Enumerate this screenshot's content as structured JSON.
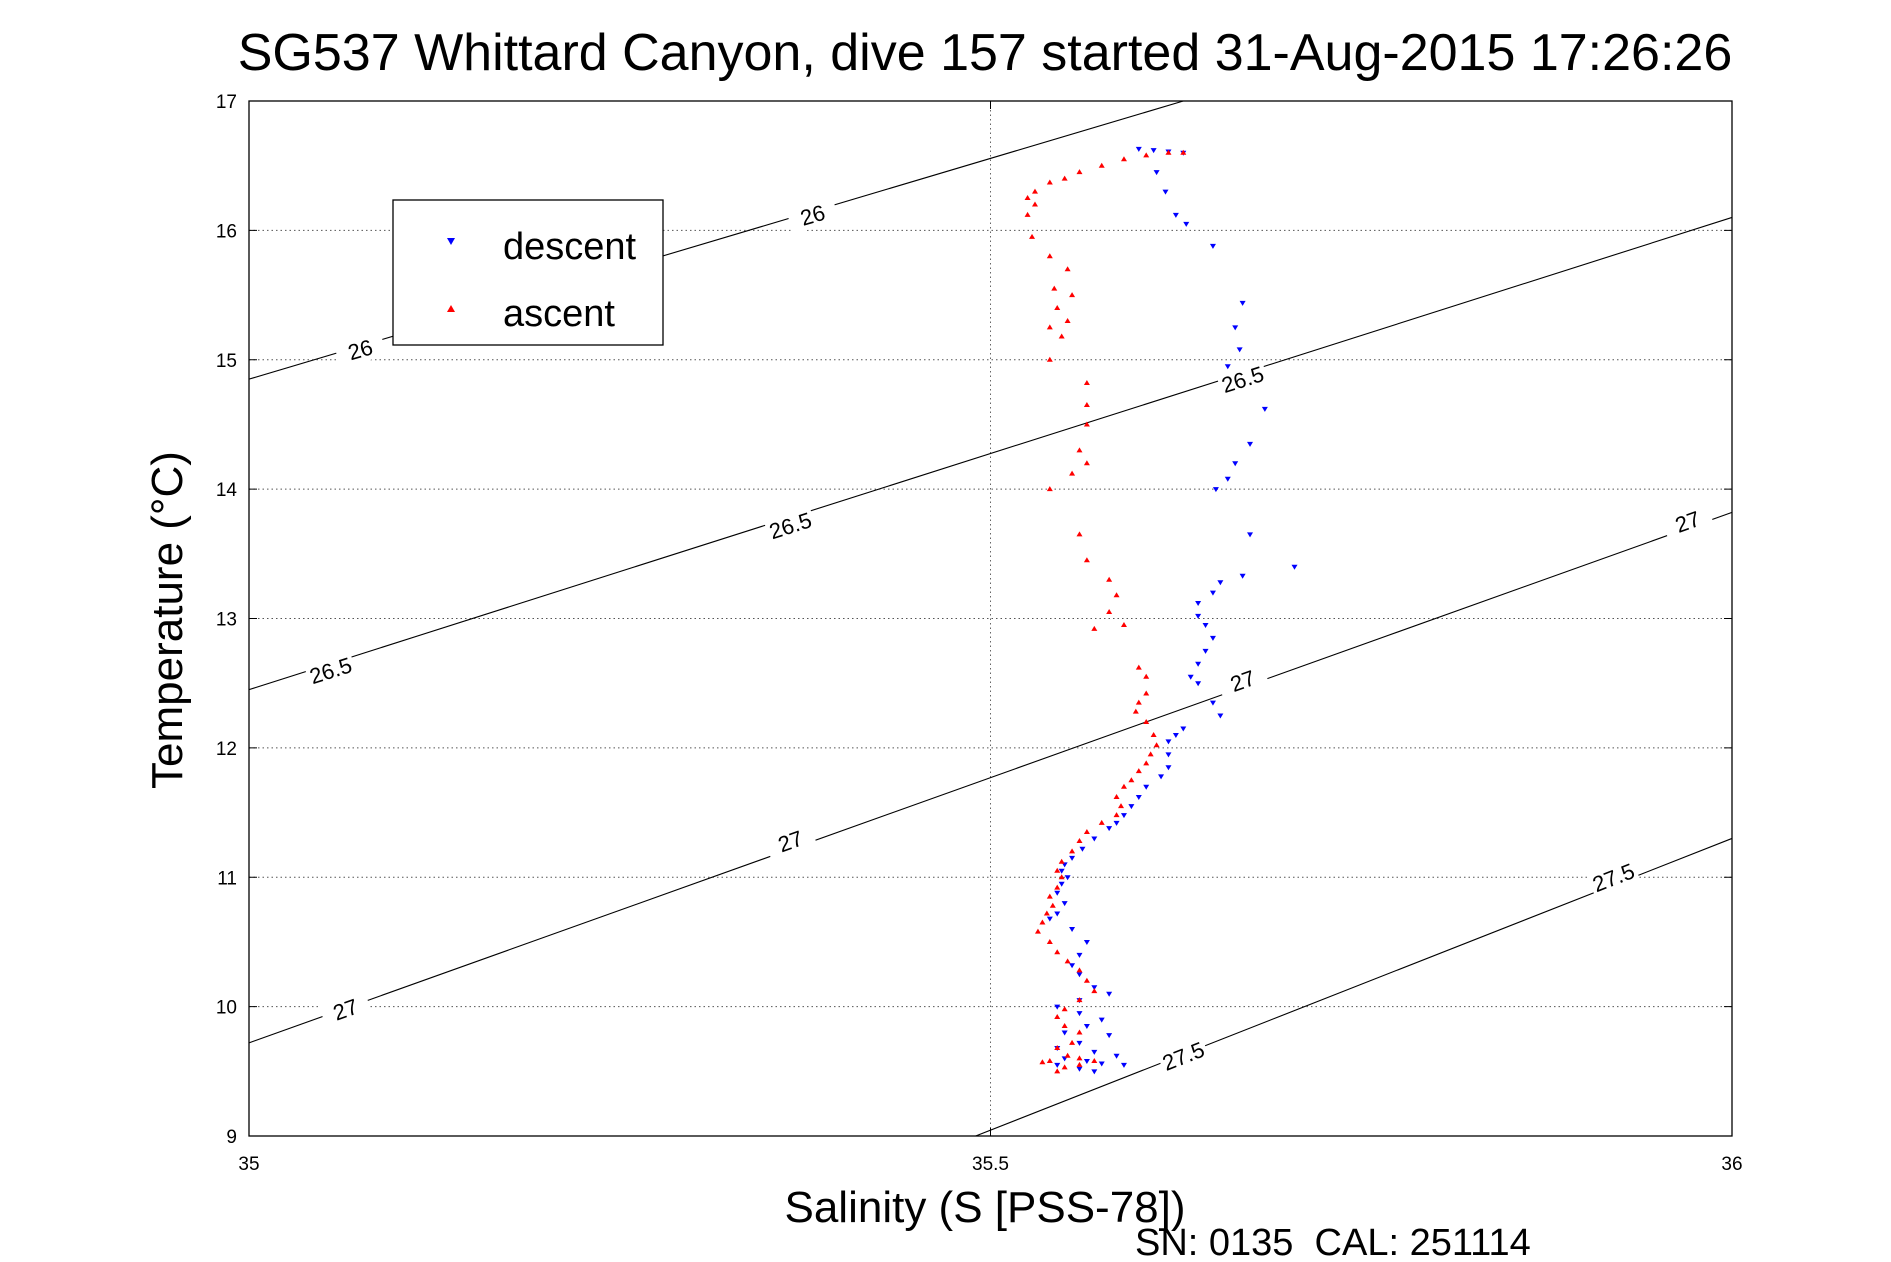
{
  "chart_data": {
    "type": "scatter",
    "title": "SG537 Whittard Canyon, dive 157 started 31-Aug-2015 17:26:26",
    "xlabel": "Salinity (S [PSS-78])",
    "ylabel": "Temperature (°C)",
    "xlim": [
      35,
      36
    ],
    "ylim": [
      9,
      17
    ],
    "xticks": [
      "35",
      "35.5",
      "36"
    ],
    "yticks": [
      "9",
      "10",
      "11",
      "12",
      "13",
      "14",
      "15",
      "16",
      "17"
    ],
    "grid": true,
    "legend_position": "upper-left",
    "footer": "SN: 0135  CAL: 251114",
    "series": [
      {
        "name": "descent",
        "marker": "triangle-down",
        "color": "#0000ff",
        "points": [
          [
            35.6,
            16.63
          ],
          [
            35.61,
            16.62
          ],
          [
            35.62,
            16.61
          ],
          [
            35.63,
            16.6
          ],
          [
            35.612,
            16.45
          ],
          [
            35.618,
            16.3
          ],
          [
            35.625,
            16.12
          ],
          [
            35.632,
            16.05
          ],
          [
            35.65,
            15.88
          ],
          [
            35.67,
            15.44
          ],
          [
            35.665,
            15.25
          ],
          [
            35.668,
            15.08
          ],
          [
            35.66,
            14.95
          ],
          [
            35.685,
            14.62
          ],
          [
            35.675,
            14.35
          ],
          [
            35.665,
            14.2
          ],
          [
            35.66,
            14.08
          ],
          [
            35.652,
            14.0
          ],
          [
            35.675,
            13.65
          ],
          [
            35.705,
            13.4
          ],
          [
            35.67,
            13.33
          ],
          [
            35.655,
            13.28
          ],
          [
            35.65,
            13.2
          ],
          [
            35.64,
            13.12
          ],
          [
            35.64,
            13.02
          ],
          [
            35.645,
            12.95
          ],
          [
            35.65,
            12.85
          ],
          [
            35.645,
            12.75
          ],
          [
            35.64,
            12.65
          ],
          [
            35.635,
            12.55
          ],
          [
            35.64,
            12.5
          ],
          [
            35.65,
            12.35
          ],
          [
            35.655,
            12.25
          ],
          [
            35.63,
            12.15
          ],
          [
            35.625,
            12.1
          ],
          [
            35.62,
            12.05
          ],
          [
            35.62,
            11.95
          ],
          [
            35.62,
            11.85
          ],
          [
            35.615,
            11.78
          ],
          [
            35.605,
            11.7
          ],
          [
            35.6,
            11.62
          ],
          [
            35.595,
            11.55
          ],
          [
            35.59,
            11.48
          ],
          [
            35.585,
            11.42
          ],
          [
            35.58,
            11.38
          ],
          [
            35.57,
            11.3
          ],
          [
            35.562,
            11.22
          ],
          [
            35.555,
            11.15
          ],
          [
            35.55,
            11.1
          ],
          [
            35.548,
            11.05
          ],
          [
            35.552,
            11.0
          ],
          [
            35.548,
            10.95
          ],
          [
            35.545,
            10.88
          ],
          [
            35.55,
            10.8
          ],
          [
            35.545,
            10.72
          ],
          [
            35.54,
            10.68
          ],
          [
            35.555,
            10.6
          ],
          [
            35.565,
            10.5
          ],
          [
            35.56,
            10.4
          ],
          [
            35.555,
            10.32
          ],
          [
            35.56,
            10.25
          ],
          [
            35.57,
            10.15
          ],
          [
            35.58,
            10.1
          ],
          [
            35.56,
            10.05
          ],
          [
            35.545,
            10.0
          ],
          [
            35.56,
            9.95
          ],
          [
            35.575,
            9.9
          ],
          [
            35.565,
            9.85
          ],
          [
            35.55,
            9.8
          ],
          [
            35.58,
            9.78
          ],
          [
            35.56,
            9.72
          ],
          [
            35.545,
            9.68
          ],
          [
            35.57,
            9.65
          ],
          [
            35.585,
            9.62
          ],
          [
            35.55,
            9.6
          ],
          [
            35.565,
            9.58
          ],
          [
            35.575,
            9.56
          ],
          [
            35.59,
            9.55
          ],
          [
            35.545,
            9.55
          ],
          [
            35.56,
            9.52
          ],
          [
            35.57,
            9.5
          ]
        ]
      },
      {
        "name": "ascent",
        "marker": "triangle-up",
        "color": "#ff0000",
        "points": [
          [
            35.63,
            16.6
          ],
          [
            35.62,
            16.6
          ],
          [
            35.605,
            16.58
          ],
          [
            35.59,
            16.55
          ],
          [
            35.575,
            16.5
          ],
          [
            35.56,
            16.45
          ],
          [
            35.55,
            16.4
          ],
          [
            35.54,
            16.37
          ],
          [
            35.53,
            16.3
          ],
          [
            35.525,
            16.25
          ],
          [
            35.53,
            16.2
          ],
          [
            35.525,
            16.12
          ],
          [
            35.528,
            15.95
          ],
          [
            35.54,
            15.8
          ],
          [
            35.552,
            15.7
          ],
          [
            35.543,
            15.55
          ],
          [
            35.555,
            15.5
          ],
          [
            35.545,
            15.4
          ],
          [
            35.552,
            15.3
          ],
          [
            35.54,
            15.25
          ],
          [
            35.548,
            15.18
          ],
          [
            35.54,
            15.0
          ],
          [
            35.565,
            14.82
          ],
          [
            35.565,
            14.65
          ],
          [
            35.565,
            14.5
          ],
          [
            35.56,
            14.3
          ],
          [
            35.565,
            14.2
          ],
          [
            35.555,
            14.12
          ],
          [
            35.54,
            14.0
          ],
          [
            35.56,
            13.65
          ],
          [
            35.565,
            13.45
          ],
          [
            35.58,
            13.3
          ],
          [
            35.585,
            13.18
          ],
          [
            35.58,
            13.05
          ],
          [
            35.57,
            12.92
          ],
          [
            35.59,
            12.95
          ],
          [
            35.6,
            12.62
          ],
          [
            35.605,
            12.55
          ],
          [
            35.605,
            12.42
          ],
          [
            35.6,
            12.35
          ],
          [
            35.598,
            12.28
          ],
          [
            35.605,
            12.2
          ],
          [
            35.61,
            12.1
          ],
          [
            35.612,
            12.02
          ],
          [
            35.608,
            11.95
          ],
          [
            35.605,
            11.88
          ],
          [
            35.6,
            11.82
          ],
          [
            35.595,
            11.75
          ],
          [
            35.59,
            11.7
          ],
          [
            35.585,
            11.62
          ],
          [
            35.588,
            11.55
          ],
          [
            35.585,
            11.48
          ],
          [
            35.575,
            11.42
          ],
          [
            35.565,
            11.35
          ],
          [
            35.56,
            11.28
          ],
          [
            35.555,
            11.2
          ],
          [
            35.548,
            11.12
          ],
          [
            35.545,
            11.05
          ],
          [
            35.548,
            11.0
          ],
          [
            35.545,
            10.92
          ],
          [
            35.54,
            10.85
          ],
          [
            35.542,
            10.78
          ],
          [
            35.538,
            10.72
          ],
          [
            35.535,
            10.65
          ],
          [
            35.532,
            10.58
          ],
          [
            35.54,
            10.5
          ],
          [
            35.545,
            10.42
          ],
          [
            35.552,
            10.35
          ],
          [
            35.56,
            10.28
          ],
          [
            35.565,
            10.2
          ],
          [
            35.57,
            10.12
          ],
          [
            35.56,
            10.05
          ],
          [
            35.55,
            9.98
          ],
          [
            35.545,
            9.92
          ],
          [
            35.55,
            9.85
          ],
          [
            35.56,
            9.8
          ],
          [
            35.555,
            9.72
          ],
          [
            35.545,
            9.68
          ],
          [
            35.552,
            9.62
          ],
          [
            35.56,
            9.6
          ],
          [
            35.54,
            9.58
          ],
          [
            35.535,
            9.57
          ],
          [
            35.56,
            9.55
          ],
          [
            35.57,
            9.58
          ],
          [
            35.55,
            9.53
          ],
          [
            35.545,
            9.5
          ]
        ]
      }
    ],
    "contours": [
      {
        "level": "26",
        "line": [
          [
            35.0,
            14.85
          ],
          [
            35.63,
            17.0
          ]
        ],
        "labels": [
          [
            35.075,
            15.08
          ],
          [
            35.38,
            16.12
          ]
        ]
      },
      {
        "level": "26.5",
        "line": [
          [
            35.0,
            12.45
          ],
          [
            36.0,
            16.1
          ]
        ],
        "labels": [
          [
            35.055,
            12.6
          ],
          [
            35.365,
            13.72
          ],
          [
            35.67,
            14.85
          ]
        ]
      },
      {
        "level": "27",
        "line": [
          [
            35.0,
            9.72
          ],
          [
            36.0,
            13.82
          ]
        ],
        "labels": [
          [
            35.065,
            9.98
          ],
          [
            35.365,
            11.28
          ],
          [
            35.67,
            12.52
          ],
          [
            35.97,
            13.75
          ]
        ]
      },
      {
        "level": "27.5",
        "line": [
          [
            35.49,
            9.0
          ],
          [
            36.0,
            11.3
          ]
        ],
        "labels": [
          [
            35.63,
            9.62
          ],
          [
            35.92,
            11.0
          ]
        ]
      }
    ]
  }
}
